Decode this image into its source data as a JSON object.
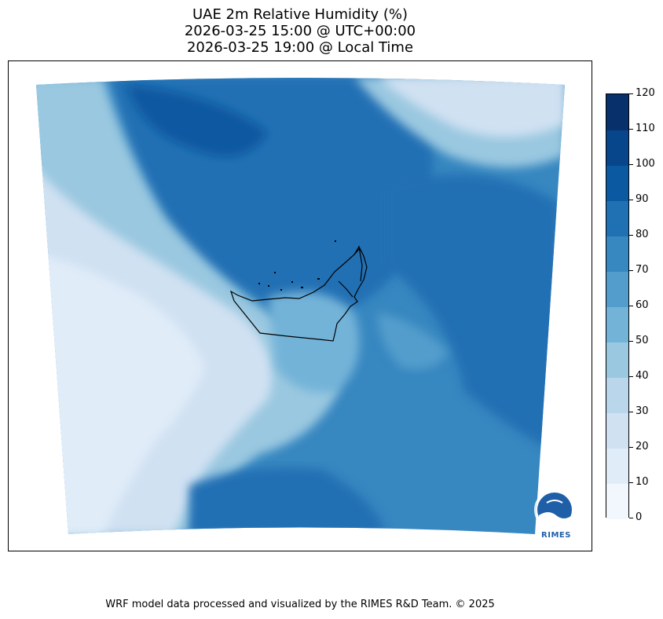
{
  "title": {
    "line1": "UAE 2m Relative Humidity (%)",
    "line2": "2026-03-25 15:00 @ UTC+00:00",
    "line3": "2026-03-25 19:00 @ Local Time"
  },
  "colorbar": {
    "levels": [
      0,
      10,
      20,
      30,
      40,
      50,
      60,
      70,
      80,
      90,
      100,
      110,
      120
    ],
    "colors": [
      "#f1f7fd",
      "#e0ecf8",
      "#d0e1f2",
      "#bad6eb",
      "#9ac8e0",
      "#73b3d8",
      "#529dcc",
      "#3787c0",
      "#2070b4",
      "#0b59a1",
      "#08468b",
      "#08306b"
    ],
    "labels": [
      "0",
      "10",
      "20",
      "30",
      "40",
      "50",
      "60",
      "70",
      "80",
      "90",
      "100",
      "110",
      "120"
    ]
  },
  "logo": {
    "text": "RIMES",
    "icon": "rimes-globe-icon"
  },
  "footer": {
    "credit": "WRF model data processed and visualized by the RIMES R&D Team. © 2025"
  }
}
